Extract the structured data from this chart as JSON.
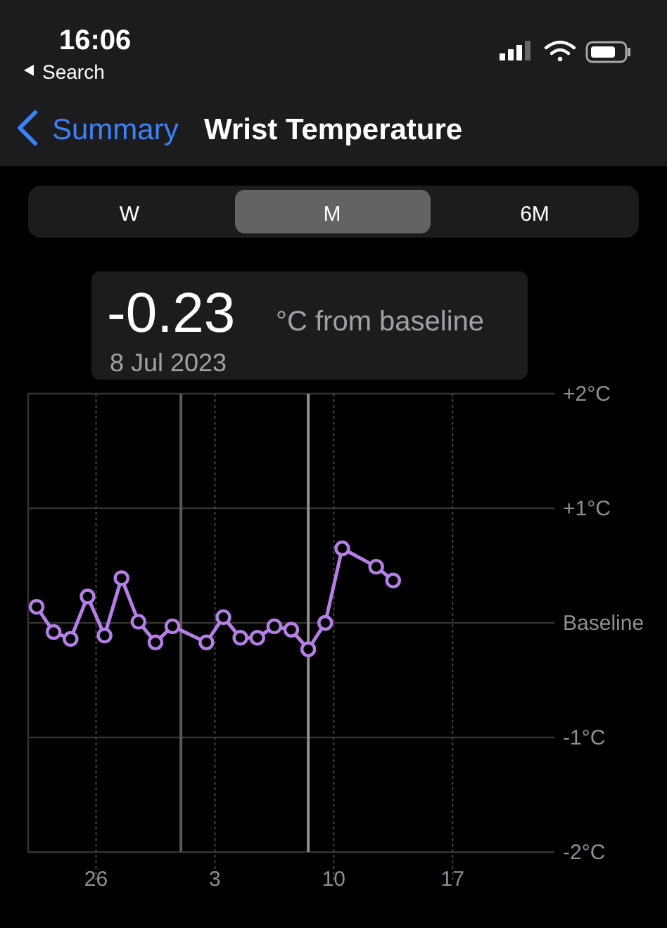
{
  "chart_data": {
    "type": "line",
    "title": "Wrist Temperature",
    "annotations": [
      "16:06",
      "Search",
      "Summary",
      "W",
      "M",
      "6M",
      "-0.23",
      "°C from baseline",
      "8 Jul 2023"
    ],
    "x": [
      "2023-06-22T12:00",
      "2023-06-23T12:00",
      "2023-06-24T12:00",
      "2023-06-25T12:00",
      "2023-06-26T12:00",
      "2023-06-27T12:00",
      "2023-06-28T12:00",
      "2023-06-29T12:00",
      "2023-06-30T12:00",
      "2023-07-02T12:00",
      "2023-07-03T12:00",
      "2023-07-04T12:00",
      "2023-07-05T12:00",
      "2023-07-06T12:00",
      "2023-07-07T12:00",
      "2023-07-08T12:00",
      "2023-07-09T12:00",
      "2023-07-10T12:00",
      "2023-07-12T12:00",
      "2023-07-13T12:00"
    ],
    "series": [
      {
        "color": "#b67fe8",
        "values": [
          0.14,
          -0.08,
          -0.14,
          0.23,
          -0.11,
          0.39,
          0.01,
          -0.17,
          -0.03,
          -0.17,
          0.05,
          -0.13,
          -0.13,
          -0.03,
          -0.06,
          -0.23,
          0.0,
          0.65,
          0.49,
          0.37
        ]
      }
    ],
    "xlim": [
      "2023-06-22",
      "2023-07-23"
    ],
    "xticks": [
      {
        "value": "2023-06-26",
        "label": "26"
      },
      {
        "value": "2023-07-03",
        "label": "3"
      },
      {
        "value": "2023-07-10",
        "label": "10"
      },
      {
        "value": "2023-07-17",
        "label": "17"
      }
    ],
    "ylim": [
      -2,
      2
    ],
    "yticks": [
      {
        "value": -2,
        "label": "-2°C"
      },
      {
        "value": -1,
        "label": "-1°C"
      },
      {
        "value": 0,
        "label": "Baseline"
      },
      {
        "value": 1,
        "label": "+1°C"
      },
      {
        "value": 2,
        "label": "+2°C"
      }
    ],
    "ref_lines": [
      {
        "axis": "x",
        "value": "2023-07-01",
        "color": "#5a5a5e"
      },
      {
        "axis": "x",
        "value": "2023-07-08T12:00",
        "color": "#8e8e93"
      }
    ],
    "grid": true,
    "marker": "circle",
    "line_style": "solid"
  }
}
